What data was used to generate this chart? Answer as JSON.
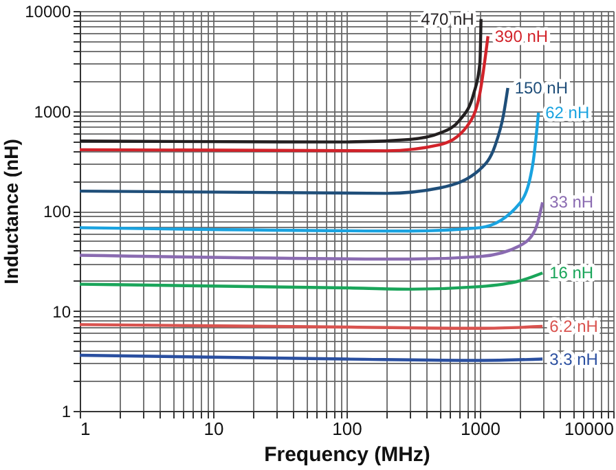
{
  "chart_data": {
    "type": "line",
    "xlabel": "Frequency (MHz)",
    "ylabel": "Inductance (nH)",
    "log": "xy",
    "grid": true,
    "marker": "none",
    "line_style": "solid",
    "xlim": [
      1,
      10000
    ],
    "ylim": [
      1,
      10000
    ],
    "xticks": [
      1,
      {
        "value": 2,
        "label": null
      },
      {
        "value": 3,
        "label": null
      },
      {
        "value": 4,
        "label": null
      },
      {
        "value": 5,
        "label": null
      },
      {
        "value": 6,
        "label": null
      },
      {
        "value": 7,
        "label": null
      },
      {
        "value": 8,
        "label": null
      },
      {
        "value": 9,
        "label": null
      },
      10,
      {
        "value": 20,
        "label": null
      },
      {
        "value": 30,
        "label": null
      },
      {
        "value": 40,
        "label": null
      },
      {
        "value": 50,
        "label": null
      },
      {
        "value": 60,
        "label": null
      },
      {
        "value": 70,
        "label": null
      },
      {
        "value": 80,
        "label": null
      },
      {
        "value": 90,
        "label": null
      },
      100,
      {
        "value": 200,
        "label": null
      },
      {
        "value": 300,
        "label": null
      },
      {
        "value": 400,
        "label": null
      },
      {
        "value": 500,
        "label": null
      },
      {
        "value": 600,
        "label": null
      },
      {
        "value": 700,
        "label": null
      },
      {
        "value": 800,
        "label": null
      },
      {
        "value": 900,
        "label": null
      },
      1000,
      {
        "value": 2000,
        "label": null
      },
      {
        "value": 3000,
        "label": null
      },
      {
        "value": 4000,
        "label": null
      },
      {
        "value": 5000,
        "label": null
      },
      {
        "value": 6000,
        "label": null
      },
      {
        "value": 7000,
        "label": null
      },
      {
        "value": 8000,
        "label": null
      },
      {
        "value": 9000,
        "label": null
      },
      10000
    ],
    "yticks": [
      1,
      {
        "value": 2,
        "label": null
      },
      {
        "value": 3,
        "label": null
      },
      {
        "value": 4,
        "label": null
      },
      {
        "value": 5,
        "label": null
      },
      {
        "value": 6,
        "label": null
      },
      {
        "value": 7,
        "label": null
      },
      {
        "value": 8,
        "label": null
      },
      {
        "value": 9,
        "label": null
      },
      10,
      {
        "value": 20,
        "label": null
      },
      {
        "value": 30,
        "label": null
      },
      {
        "value": 40,
        "label": null
      },
      {
        "value": 50,
        "label": null
      },
      {
        "value": 60,
        "label": null
      },
      {
        "value": 70,
        "label": null
      },
      {
        "value": 80,
        "label": null
      },
      {
        "value": 90,
        "label": null
      },
      100,
      {
        "value": 200,
        "label": null
      },
      {
        "value": 300,
        "label": null
      },
      {
        "value": 400,
        "label": null
      },
      {
        "value": 500,
        "label": null
      },
      {
        "value": 600,
        "label": null
      },
      {
        "value": 700,
        "label": null
      },
      {
        "value": 800,
        "label": null
      },
      {
        "value": 900,
        "label": null
      },
      1000,
      {
        "value": 2000,
        "label": null
      },
      {
        "value": 3000,
        "label": null
      },
      {
        "value": 4000,
        "label": null
      },
      {
        "value": 5000,
        "label": null
      },
      {
        "value": 6000,
        "label": null
      },
      {
        "value": 7000,
        "label": null
      },
      {
        "value": 8000,
        "label": null
      },
      {
        "value": 9000,
        "label": null
      },
      10000
    ],
    "series": [
      {
        "name": "470 nH",
        "color": "#231f20",
        "x": [
          1,
          100,
          300,
          500,
          700,
          900,
          1000,
          1020
        ],
        "values": [
          500,
          490,
          520,
          600,
          800,
          1500,
          3000,
          8300
        ]
      },
      {
        "name": "390 nH",
        "color": "#d2232a",
        "x": [
          1,
          200,
          500,
          800,
          1000,
          1150
        ],
        "values": [
          410,
          400,
          460,
          700,
          1500,
          5600
        ]
      },
      {
        "name": "150 nH",
        "color": "#1f4e79",
        "x": [
          1,
          200,
          500,
          1000,
          1300,
          1500,
          1620
        ],
        "values": [
          158,
          150,
          170,
          260,
          450,
          900,
          1700
        ]
      },
      {
        "name": "62 nH",
        "color": "#1aa3e0",
        "x": [
          1,
          300,
          1000,
          2000,
          2500,
          2750
        ],
        "values": [
          68,
          63,
          68,
          120,
          300,
          960
        ]
      },
      {
        "name": "33 nH",
        "color": "#8a6bb1",
        "x": [
          1,
          300,
          1000,
          2000,
          2600,
          2950
        ],
        "values": [
          36,
          33,
          35,
          45,
          65,
          122
        ]
      },
      {
        "name": "16 nH",
        "color": "#1aa55a",
        "x": [
          1,
          100,
          300,
          1000,
          2000,
          2950
        ],
        "values": [
          18.5,
          17,
          16.5,
          17.5,
          20,
          24
        ]
      },
      {
        "name": "6.2 nH",
        "color": "#d9534f",
        "x": [
          1,
          100,
          1000,
          2950
        ],
        "values": [
          7.3,
          6.9,
          6.7,
          7
        ]
      },
      {
        "name": "3.3 nH",
        "color": "#2a4fa0",
        "x": [
          1,
          100,
          1000,
          2950
        ],
        "values": [
          3.6,
          3.3,
          3.2,
          3.3
        ]
      }
    ]
  }
}
